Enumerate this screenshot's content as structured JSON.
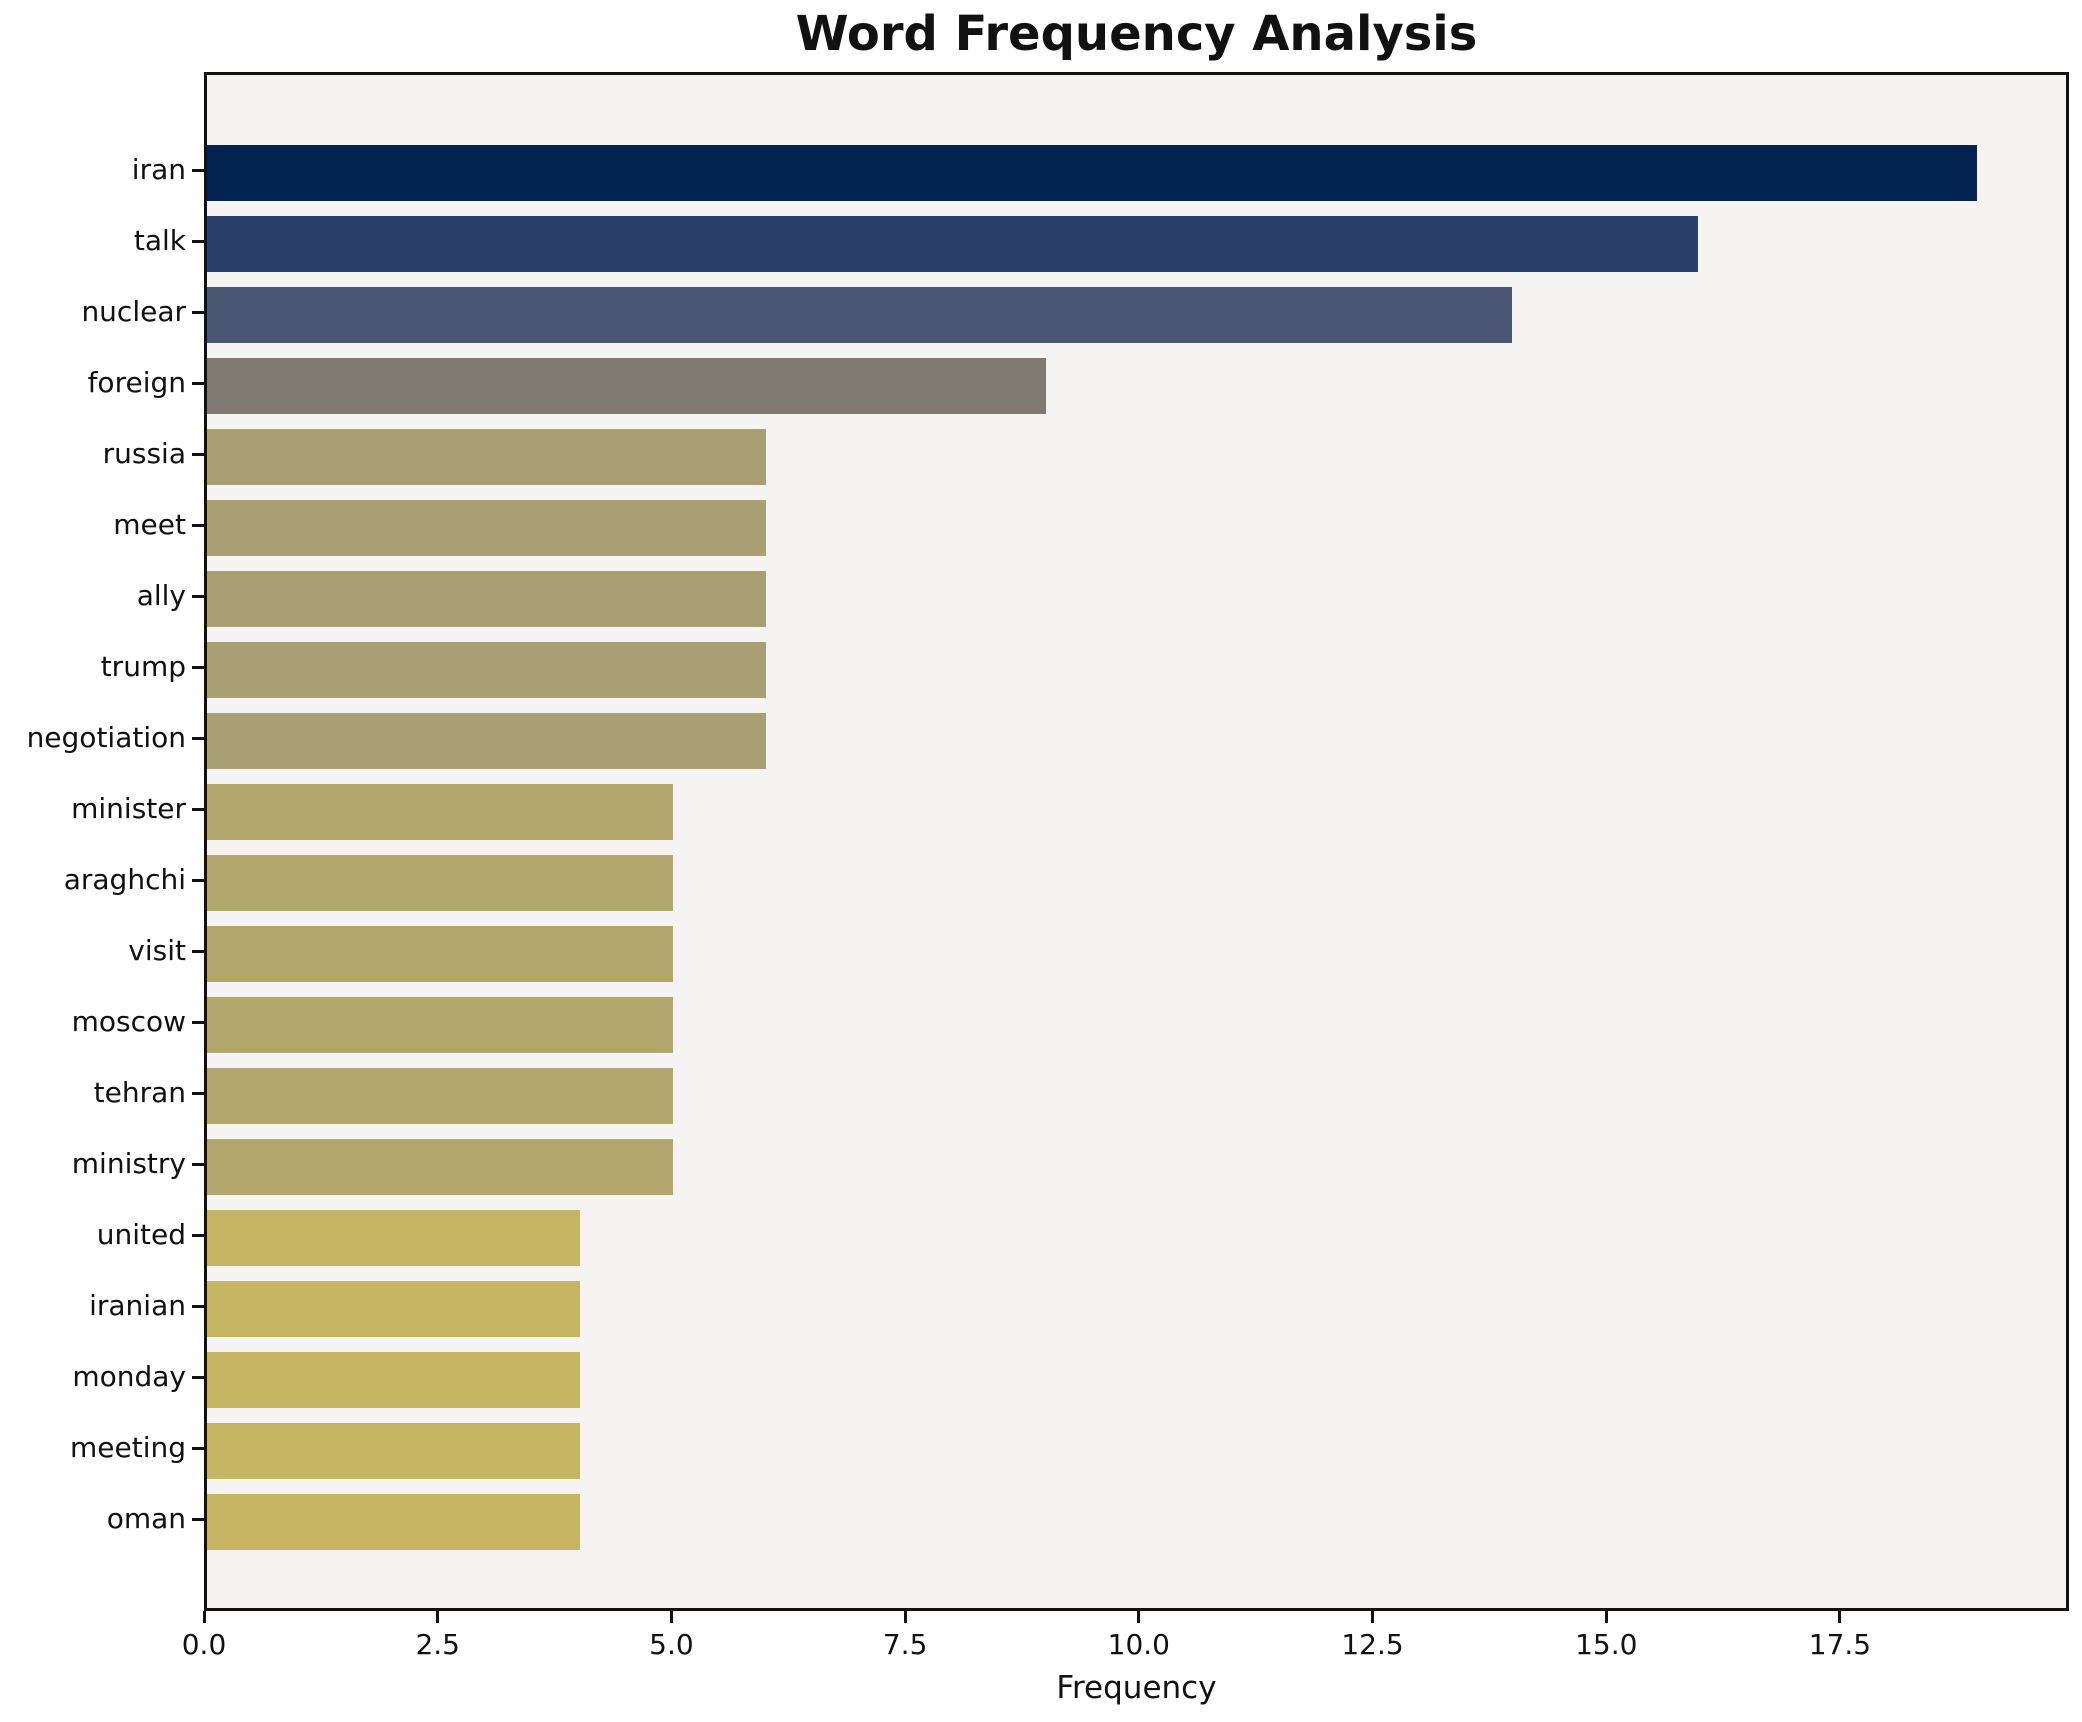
{
  "chart_data": {
    "type": "bar",
    "orientation": "horizontal",
    "title": "Word Frequency Analysis",
    "xlabel": "Frequency",
    "ylabel": "",
    "categories": [
      "iran",
      "talk",
      "nuclear",
      "foreign",
      "russia",
      "meet",
      "ally",
      "trump",
      "negotiation",
      "minister",
      "araghchi",
      "visit",
      "moscow",
      "tehran",
      "ministry",
      "united",
      "iranian",
      "monday",
      "meeting",
      "oman"
    ],
    "values": [
      19,
      16,
      14,
      9,
      6,
      6,
      6,
      6,
      6,
      5,
      5,
      5,
      5,
      5,
      5,
      4,
      4,
      4,
      4,
      4
    ],
    "bar_colors": [
      "#02234f",
      "#2b3f6b",
      "#495571",
      "#7f7b70",
      "#a89f72",
      "#a89f72",
      "#a89f72",
      "#a89f72",
      "#a89f72",
      "#b2a86e",
      "#b2a86e",
      "#b2a86e",
      "#b2a86e",
      "#b2a86e",
      "#b2a86e",
      "#c5b562",
      "#c5b562",
      "#c5b562",
      "#c5b562",
      "#c5b562"
    ],
    "xlim": [
      0,
      19.95
    ],
    "x_ticks": [
      0.0,
      2.5,
      5.0,
      7.5,
      10.0,
      12.5,
      15.0,
      17.5
    ],
    "x_tick_labels": [
      "0.0",
      "2.5",
      "5.0",
      "7.5",
      "10.0",
      "12.5",
      "15.0",
      "17.5"
    ],
    "grid": false,
    "legend": "none",
    "plot_bg": "#f5f4f2",
    "figure_bg": "#ffffff",
    "spine_color": "#111111",
    "text_color": "#111111"
  }
}
